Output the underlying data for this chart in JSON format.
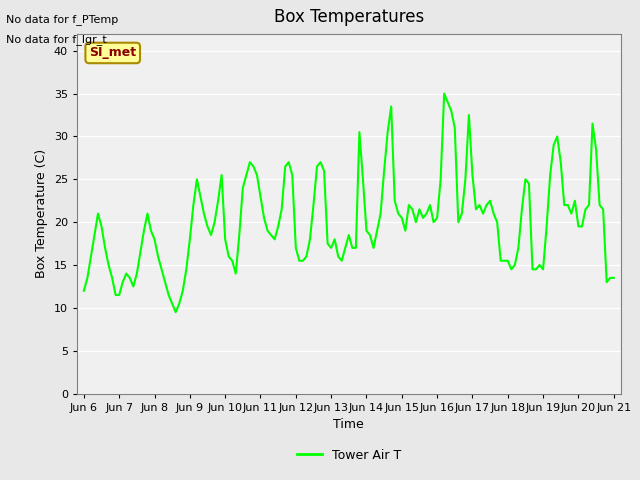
{
  "title": "Box Temperatures",
  "xlabel": "Time",
  "ylabel": "Box Temperature (C)",
  "text_no_data_1": "No data for f_PTemp",
  "text_no_data_2": "No data for f_lgr_t",
  "si_met_label": "SI_met",
  "legend_label": "Tower Air T",
  "legend_line_color": "#00ff00",
  "line_color": "#00ff00",
  "bg_color": "#e8e8e8",
  "plot_bg_color": "#f0f0f0",
  "ylim": [
    0,
    42
  ],
  "yticks": [
    0,
    5,
    10,
    15,
    20,
    25,
    30,
    35,
    40
  ],
  "x_labels": [
    "Jun 6",
    "Jun 7",
    "Jun 8",
    "Jun 9",
    "Jun 10",
    "Jun 11",
    "Jun 12",
    "Jun 13",
    "Jun 14",
    "Jun 15",
    "Jun 16",
    "Jun 17",
    "Jun 18",
    "Jun 19",
    "Jun 20",
    "Jun 21"
  ],
  "x_positions": [
    0,
    1,
    2,
    3,
    4,
    5,
    6,
    7,
    8,
    9,
    10,
    11,
    12,
    13,
    14,
    15
  ],
  "x_data": [
    0.0,
    0.1,
    0.2,
    0.3,
    0.4,
    0.5,
    0.6,
    0.7,
    0.8,
    0.9,
    1.0,
    1.1,
    1.2,
    1.3,
    1.4,
    1.5,
    1.6,
    1.7,
    1.8,
    1.9,
    2.0,
    2.1,
    2.2,
    2.3,
    2.4,
    2.5,
    2.6,
    2.7,
    2.8,
    2.9,
    3.0,
    3.1,
    3.2,
    3.3,
    3.4,
    3.5,
    3.6,
    3.7,
    3.8,
    3.9,
    4.0,
    4.1,
    4.2,
    4.3,
    4.4,
    4.5,
    4.6,
    4.7,
    4.8,
    4.9,
    5.0,
    5.1,
    5.2,
    5.3,
    5.4,
    5.5,
    5.6,
    5.7,
    5.8,
    5.9,
    6.0,
    6.1,
    6.2,
    6.3,
    6.4,
    6.5,
    6.6,
    6.7,
    6.8,
    6.9,
    7.0,
    7.1,
    7.2,
    7.3,
    7.4,
    7.5,
    7.6,
    7.7,
    7.8,
    7.9,
    8.0,
    8.1,
    8.2,
    8.3,
    8.4,
    8.5,
    8.6,
    8.7,
    8.8,
    8.9,
    9.0,
    9.1,
    9.2,
    9.3,
    9.4,
    9.5,
    9.6,
    9.7,
    9.8,
    9.9,
    10.0,
    10.1,
    10.2,
    10.3,
    10.4,
    10.5,
    10.6,
    10.7,
    10.8,
    10.9,
    11.0,
    11.1,
    11.2,
    11.3,
    11.4,
    11.5,
    11.6,
    11.7,
    11.8,
    11.9,
    12.0,
    12.1,
    12.2,
    12.3,
    12.4,
    12.5,
    12.6,
    12.7,
    12.8,
    12.9,
    13.0,
    13.1,
    13.2,
    13.3,
    13.4,
    13.5,
    13.6,
    13.7,
    13.8,
    13.9,
    14.0,
    14.1,
    14.2,
    14.3,
    14.4,
    14.5,
    14.6,
    14.7,
    14.8,
    14.9,
    15.0
  ],
  "y_data": [
    12.0,
    13.5,
    16.0,
    18.5,
    21.0,
    19.5,
    17.0,
    15.0,
    13.5,
    11.5,
    11.5,
    13.0,
    14.0,
    13.5,
    12.5,
    14.0,
    16.5,
    19.0,
    21.0,
    19.0,
    18.0,
    16.0,
    14.5,
    13.0,
    11.5,
    10.5,
    9.5,
    10.5,
    12.0,
    14.5,
    18.0,
    22.0,
    25.0,
    23.0,
    21.0,
    19.5,
    18.5,
    20.0,
    22.5,
    25.5,
    18.0,
    16.0,
    15.5,
    14.0,
    18.5,
    24.0,
    25.5,
    27.0,
    26.5,
    25.5,
    23.0,
    20.5,
    19.0,
    18.5,
    18.0,
    19.5,
    21.5,
    26.5,
    27.0,
    25.5,
    17.0,
    15.5,
    15.5,
    16.0,
    18.0,
    22.0,
    26.5,
    27.0,
    26.0,
    17.5,
    17.0,
    18.0,
    16.0,
    15.5,
    17.0,
    18.5,
    17.0,
    17.0,
    30.5,
    25.0,
    19.0,
    18.5,
    17.0,
    19.0,
    21.0,
    26.0,
    30.5,
    33.5,
    22.5,
    21.0,
    20.5,
    19.0,
    22.0,
    21.5,
    20.0,
    21.5,
    20.5,
    21.0,
    22.0,
    20.0,
    20.5,
    25.0,
    35.0,
    34.0,
    33.0,
    31.0,
    20.0,
    21.0,
    25.0,
    32.5,
    25.5,
    21.5,
    22.0,
    21.0,
    22.0,
    22.5,
    21.0,
    20.0,
    15.5,
    15.5,
    15.5,
    14.5,
    15.0,
    17.0,
    21.5,
    25.0,
    24.5,
    14.5,
    14.5,
    15.0,
    14.5,
    19.5,
    25.5,
    29.0,
    30.0,
    27.0,
    22.0,
    22.0,
    21.0,
    22.5,
    19.5,
    19.5,
    21.5,
    22.0,
    31.5,
    28.5,
    22.0,
    21.5,
    13.0,
    13.5,
    13.5
  ]
}
